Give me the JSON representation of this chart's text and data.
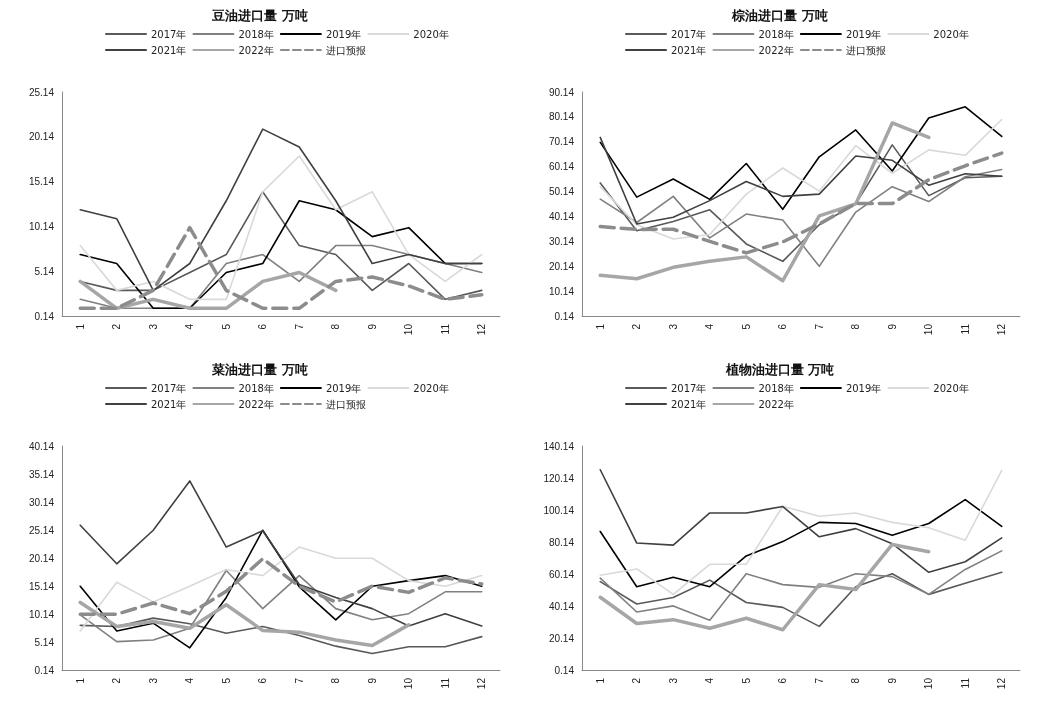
{
  "chart_data": [
    {
      "type": "line",
      "title": "豆油进口量 万吨",
      "categories": [
        "1",
        "2",
        "3",
        "4",
        "5",
        "6",
        "7",
        "8",
        "9",
        "10",
        "11",
        "12"
      ],
      "ylim": [
        0.14,
        25.14
      ],
      "yticks": [
        0.14,
        5.14,
        10.14,
        15.14,
        20.14,
        25.14
      ],
      "grid": false,
      "legend": "top",
      "marker": "none",
      "series": [
        {
          "name": "2017年",
          "color": "#595959",
          "values": [
            4,
            3,
            3,
            5,
            7,
            14,
            8,
            7,
            3,
            6,
            2,
            3
          ]
        },
        {
          "name": "2018年",
          "color": "#808080",
          "values": [
            2,
            1,
            1,
            1,
            6,
            7,
            4,
            8,
            8,
            7,
            6,
            5
          ]
        },
        {
          "name": "2019年",
          "color": "#000000",
          "values": [
            7,
            6,
            1,
            1,
            5,
            6,
            13,
            12,
            9,
            10,
            6,
            6
          ]
        },
        {
          "name": "2020年",
          "color": "#d9d9d9",
          "values": [
            8,
            3,
            4,
            2,
            2,
            14,
            18,
            12,
            14,
            7,
            4,
            7
          ]
        },
        {
          "name": "2021年",
          "color": "#404040",
          "values": [
            12,
            11,
            3,
            6,
            13,
            21,
            19,
            13,
            6,
            7,
            6,
            6
          ]
        },
        {
          "name": "2022年",
          "color": "#a6a6a6",
          "values": [
            4,
            1,
            2,
            1,
            1,
            4,
            5,
            3,
            null,
            null,
            null,
            null
          ]
        },
        {
          "name": "进口预报",
          "color": "#8c8c8c",
          "line_style": "dashed",
          "values": [
            1,
            1,
            3,
            10,
            3,
            1,
            1,
            4,
            4.5,
            3.5,
            2,
            2.5
          ]
        }
      ]
    },
    {
      "type": "line",
      "title": "棕油进口量 万吨",
      "categories": [
        "1",
        "2",
        "3",
        "4",
        "5",
        "6",
        "7",
        "8",
        "9",
        "10",
        "11",
        "12"
      ],
      "ylim": [
        0.14,
        90.14
      ],
      "yticks": [
        0.14,
        10.14,
        20.14,
        30.14,
        40.14,
        50.14,
        60.14,
        70.14,
        80.14,
        90.14
      ],
      "grid": false,
      "legend": "top",
      "marker": "none",
      "series": [
        {
          "name": "2017年",
          "color": "#595959",
          "values": [
            53.6,
            34.4,
            38.1,
            42.8,
            29.1,
            22.1,
            36.8,
            45.2,
            68.9,
            48.5,
            55.7,
            56.3
          ]
        },
        {
          "name": "2018年",
          "color": "#808080",
          "values": [
            47.1,
            37.7,
            48.2,
            31.5,
            41.1,
            38.7,
            20.1,
            41.9,
            52.1,
            46.1,
            56.1,
            59
          ]
        },
        {
          "name": "2019年",
          "color": "#000000",
          "values": [
            69.9,
            47.9,
            55.2,
            47,
            61.4,
            43,
            64.1,
            74.9,
            58.4,
            79.7,
            84.2,
            72.3
          ]
        },
        {
          "name": "2020年",
          "color": "#d9d9d9",
          "values": [
            52.1,
            36.8,
            31.1,
            32.9,
            49.1,
            59.6,
            50.3,
            68.6,
            57.5,
            66.9,
            64.7,
            79.1
          ]
        },
        {
          "name": "2021年",
          "color": "#404040",
          "values": [
            71.9,
            37.1,
            39.8,
            46.5,
            54.2,
            48.2,
            49.1,
            64.4,
            62.7,
            52.7,
            57.3,
            56.3
          ]
        },
        {
          "name": "2022年",
          "color": "#a6a6a6",
          "values": [
            16.5,
            15.1,
            19.7,
            22.1,
            23.9,
            14.3,
            40.4,
            45.2,
            77.7,
            71.9,
            null,
            null
          ]
        },
        {
          "name": "进口预报",
          "color": "#8c8c8c",
          "line_style": "dashed",
          "values": [
            36.1,
            34.9,
            35,
            30.1,
            25.5,
            29.9,
            37.1,
            45.3,
            45.3,
            54.9,
            60.5,
            65.6
          ]
        }
      ]
    },
    {
      "type": "line",
      "title": "菜油进口量 万吨",
      "categories": [
        "1",
        "2",
        "3",
        "4",
        "5",
        "6",
        "7",
        "8",
        "9",
        "10",
        "11",
        "12"
      ],
      "ylim": [
        0.14,
        40.14
      ],
      "yticks": [
        0.14,
        5.14,
        10.14,
        15.14,
        20.14,
        25.14,
        30.14,
        35.14,
        40.14
      ],
      "grid": false,
      "legend": "top",
      "marker": "none",
      "series": [
        {
          "name": "2017年",
          "color": "#595959",
          "values": [
            8.1,
            7.9,
            9.4,
            8.4,
            6.7,
            7.9,
            6.3,
            4.4,
            3.1,
            4.3,
            4.3,
            6.1
          ]
        },
        {
          "name": "2018年",
          "color": "#808080",
          "values": [
            10,
            5.2,
            5.5,
            7.6,
            17.9,
            11.1,
            17,
            11.1,
            9.1,
            10.2,
            14.1,
            14.1
          ]
        },
        {
          "name": "2019年",
          "color": "#000000",
          "values": [
            15.1,
            7.1,
            8.5,
            4.1,
            13.1,
            25.1,
            15,
            9.1,
            15.1,
            16.1,
            17,
            15.1
          ]
        },
        {
          "name": "2020年",
          "color": "#d9d9d9",
          "values": [
            7.1,
            15.8,
            12.3,
            15.1,
            18.1,
            17,
            22.1,
            20.1,
            20.1,
            16.1,
            15.1,
            17
          ]
        },
        {
          "name": "2021年",
          "color": "#404040",
          "values": [
            26,
            19.1,
            25.1,
            33.9,
            22.1,
            25,
            15.4,
            13.1,
            11.1,
            8,
            10.2,
            8
          ]
        },
        {
          "name": "2022年",
          "color": "#a6a6a6",
          "values": [
            12.2,
            7.9,
            8.8,
            7.6,
            11.8,
            7.2,
            6.9,
            5.5,
            4.5,
            8.2,
            null,
            null
          ]
        },
        {
          "name": "进口预报",
          "color": "#8c8c8c",
          "line_style": "dashed",
          "values": [
            10.1,
            10.1,
            12.1,
            10.2,
            14.2,
            20,
            15.1,
            12.3,
            15.1,
            14,
            16.6,
            15.5
          ]
        }
      ]
    },
    {
      "type": "line",
      "title": "植物油进口量 万吨",
      "categories": [
        "1",
        "2",
        "3",
        "4",
        "5",
        "6",
        "7",
        "8",
        "9",
        "10",
        "11",
        "12"
      ],
      "ylim": [
        0.14,
        140.14
      ],
      "yticks": [
        0.14,
        20.14,
        40.14,
        60.14,
        80.14,
        100.14,
        120.14,
        140.14
      ],
      "grid": false,
      "legend": "top",
      "marker": "none",
      "series": [
        {
          "name": "2017年",
          "color": "#595959",
          "values": [
            55.4,
            41.4,
            45.4,
            56.3,
            42.3,
            39.3,
            27.4,
            52.2,
            60.3,
            47.4,
            54.4,
            61.2
          ]
        },
        {
          "name": "2018年",
          "color": "#808080",
          "values": [
            57.6,
            36.4,
            40.2,
            31.2,
            60.3,
            53.5,
            51.8,
            60.3,
            58.5,
            47.4,
            63,
            74.6
          ]
        },
        {
          "name": "2019年",
          "color": "#000000",
          "values": [
            86.7,
            52.2,
            58.1,
            52.2,
            71.4,
            80.4,
            92.4,
            91.7,
            84.3,
            91.7,
            106.6,
            89.9
          ]
        },
        {
          "name": "2020年",
          "color": "#d9d9d9",
          "values": [
            59.4,
            63.3,
            47.4,
            66.2,
            66.2,
            102.5,
            96.2,
            98.3,
            92.4,
            89,
            81.3,
            124.9
          ]
        },
        {
          "name": "2021年",
          "color": "#404040",
          "values": [
            125.3,
            79.5,
            78.2,
            98.3,
            98.3,
            102.3,
            83.4,
            88.5,
            79.1,
            61.2,
            67.8,
            82.7
          ]
        },
        {
          "name": "2022年",
          "color": "#a6a6a6",
          "values": [
            45.6,
            29.2,
            31.6,
            26.2,
            32.5,
            25.3,
            53.5,
            50.4,
            78.6,
            74.1,
            null,
            null
          ]
        }
      ]
    }
  ]
}
